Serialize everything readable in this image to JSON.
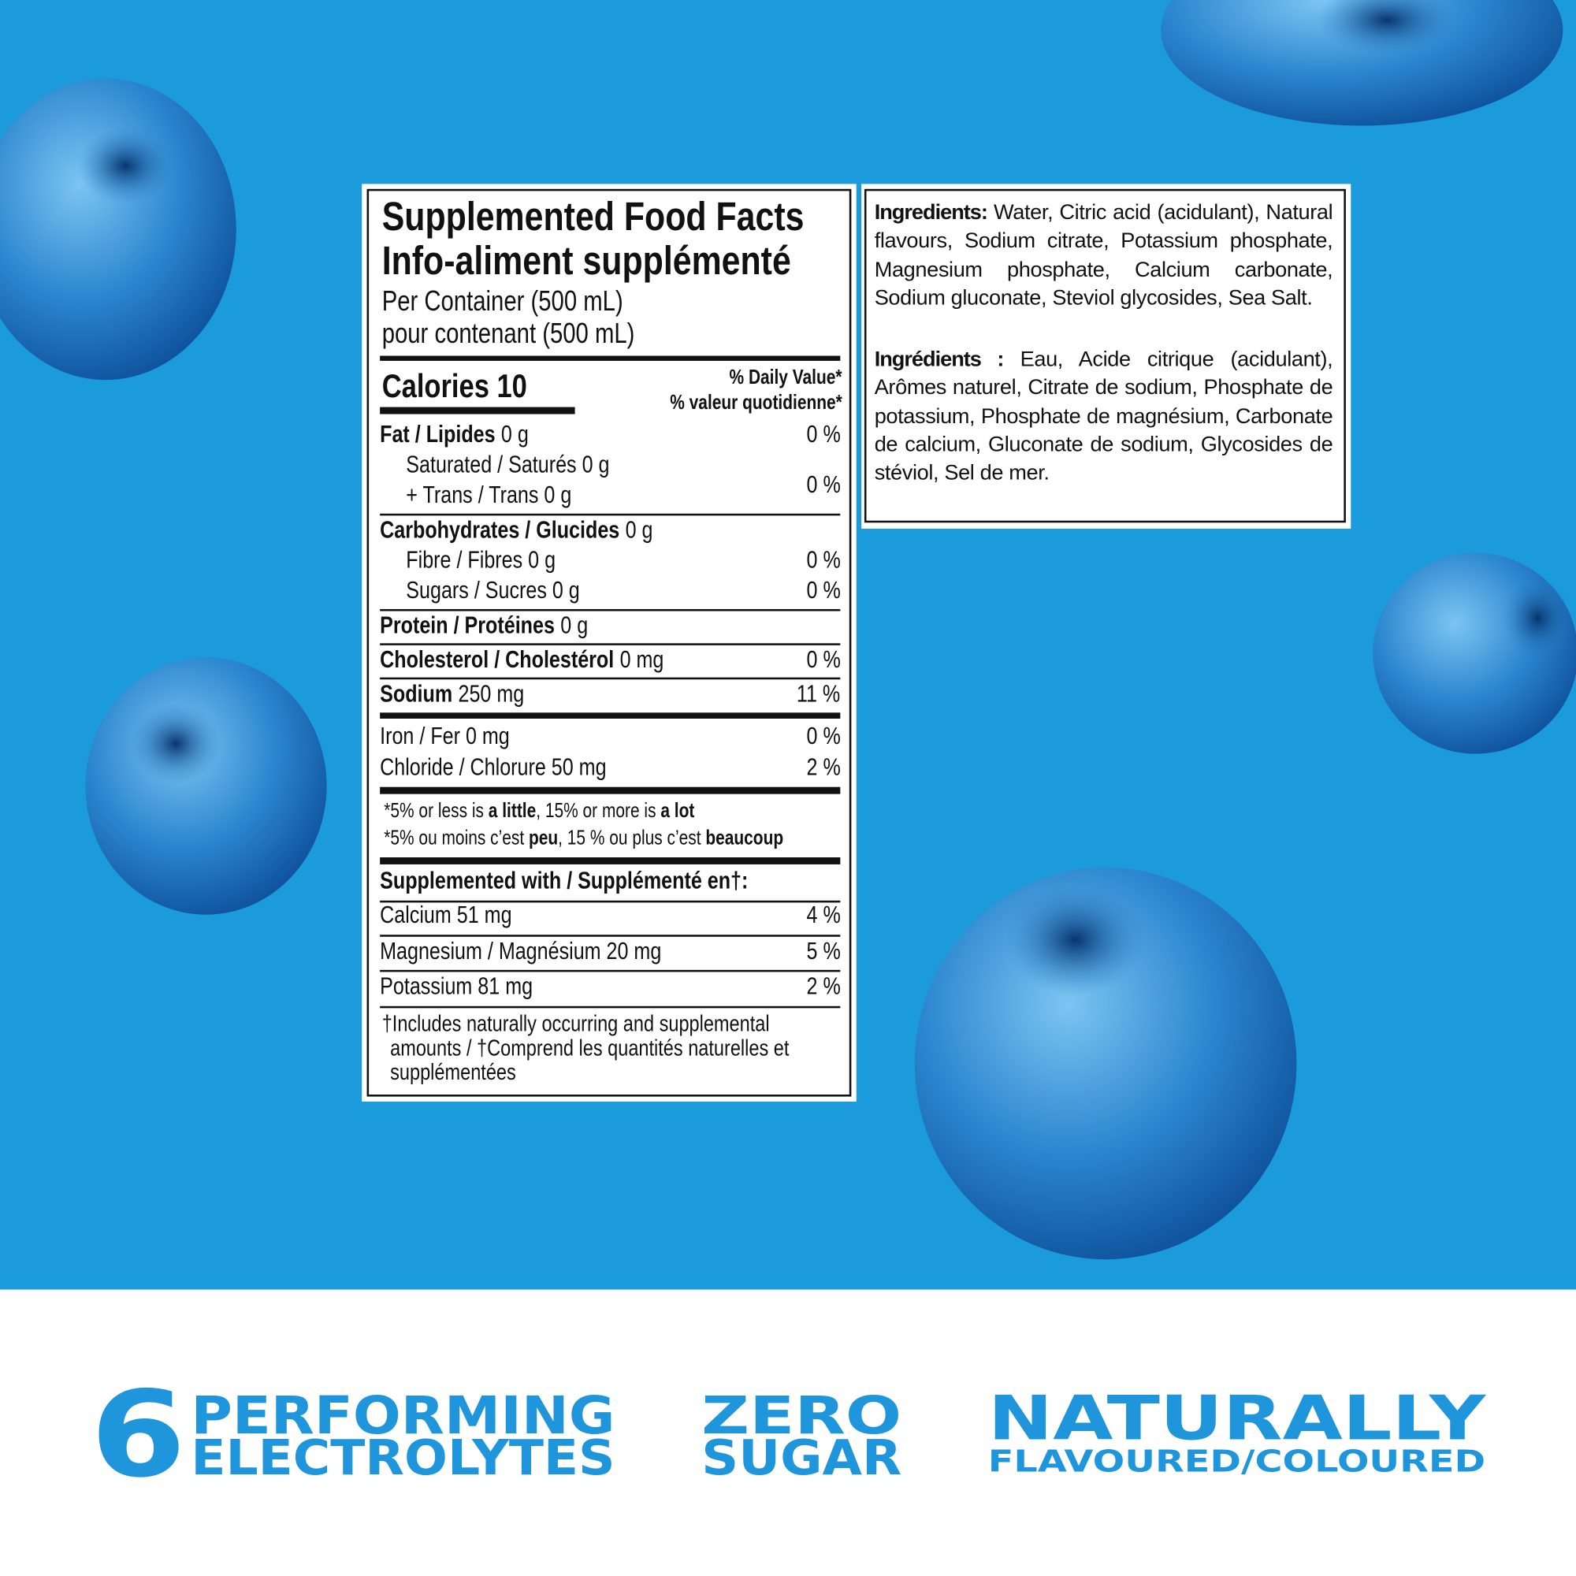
{
  "nutrition_facts": {
    "title_en": "Supplemented Food Facts",
    "title_fr": "Info-aliment supplémenté",
    "serving_en": "Per Container (500 mL)",
    "serving_fr": "pour contenant (500 mL)",
    "calories": "Calories 10",
    "daily_value_en": "% Daily Value*",
    "daily_value_fr": "% valeur quotidienne*",
    "rows": [
      {
        "label": "Fat / Lipides",
        "amount": "0 g",
        "dv": "0 %"
      },
      {
        "text": "Saturated / Saturés 0 g"
      },
      {
        "text": "+ Trans / Trans 0 g",
        "dv": "0 %"
      },
      {
        "label": "Carbohydrates / Glucides",
        "amount": "0 g"
      },
      {
        "text": "Fibre / Fibres 0 g",
        "dv": "0 %"
      },
      {
        "text": "Sugars / Sucres 0 g",
        "dv": "0 %"
      },
      {
        "label": "Protein / Protéines",
        "amount": "0 g"
      },
      {
        "label": "Cholesterol / Cholestérol",
        "amount": "0 mg",
        "dv": "0 %"
      },
      {
        "label": "Sodium",
        "amount": "250 mg",
        "dv": "11 %"
      },
      {
        "text": "Iron / Fer 0 mg",
        "dv": "0 %"
      },
      {
        "text": "Chloride / Chlorure 50 mg",
        "dv": "2 %"
      }
    ],
    "footnotes": [
      {
        "text1": "*5% or less is ",
        "bold1": "a little",
        "text2": ", 15% or more is ",
        "bold2": "a lot"
      },
      {
        "text1": "*5% ou moins c’est ",
        "bold1": "peu",
        "text2": ", 15 % ou plus c’est ",
        "bold2": "beaucoup"
      }
    ],
    "supplemented_heading": "Supplemented with / Supplémenté en†:",
    "minerals": [
      {
        "text": "Calcium 51 mg",
        "dv": "4 %"
      },
      {
        "text": "Magnesium / Magnésium 20 mg",
        "dv": "5 %"
      },
      {
        "text": "Potassium 81 mg",
        "dv": "2 %"
      }
    ],
    "supplement_note": "†Includes naturally occurring and supplemental amounts / †Comprend les quantités naturelles et supplémentées"
  },
  "ingredients": {
    "en_label": "Ingredients:",
    "en_text": " Water, Citric acid (acidulant), Natural flavours, Sodium citrate, Potassium phosphate, Magnesium phosphate, Calcium carbonate, Sodium gluconate, Steviol glycosides, Sea Salt.",
    "fr_label": "Ingrédients :",
    "fr_text": " Eau, Acide citrique (acidulant), Arômes naturel, Citrate de sodium, Phosphate de potassium, Phosphate de magnésium, Carbonate de calcium, Gluconate de sodium, Glycosides de stéviol, Sel de mer."
  },
  "claims": {
    "count": "6",
    "electrolytes_line1": "PERFORMING",
    "electrolytes_line2": "ELECTROLYTES",
    "sugar_line1": "ZERO",
    "sugar_line2": "SUGAR",
    "natural_line1": "NATURALLY",
    "natural_line2": "FLAVOURED/COLOURED"
  }
}
